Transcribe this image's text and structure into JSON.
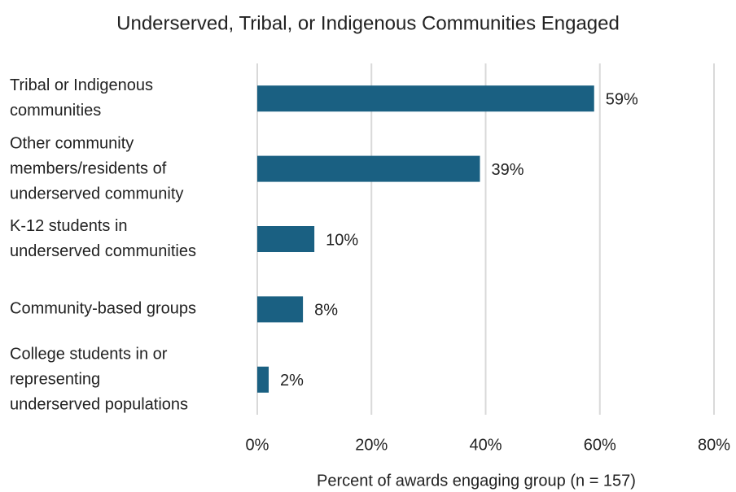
{
  "chart_data": {
    "type": "hbar",
    "title": "Underserved, Tribal, or Indigenous Communities Engaged",
    "categories": [
      "Tribal or Indigenous\ncommunities",
      "Other community\nmembers/residents of\nunderserved community",
      "K-12 students in\nunderserved communities",
      "Community-based groups",
      "College students in or\nrepresenting\nunderserved populations"
    ],
    "values": [
      59,
      39,
      10,
      8,
      2
    ],
    "value_labels": [
      "59%",
      "39%",
      "10%",
      "8%",
      "2%"
    ],
    "color": "#1a6082",
    "xlabel": "Percent of awards engaging group (n = 157)",
    "xlim": [
      0,
      80
    ],
    "xticks": [
      {
        "value": 0,
        "label": "0%"
      },
      {
        "value": 20,
        "label": "20%"
      },
      {
        "value": 40,
        "label": "40%"
      },
      {
        "value": 60,
        "label": "60%"
      },
      {
        "value": 80,
        "label": "80%"
      }
    ],
    "grid": true
  }
}
